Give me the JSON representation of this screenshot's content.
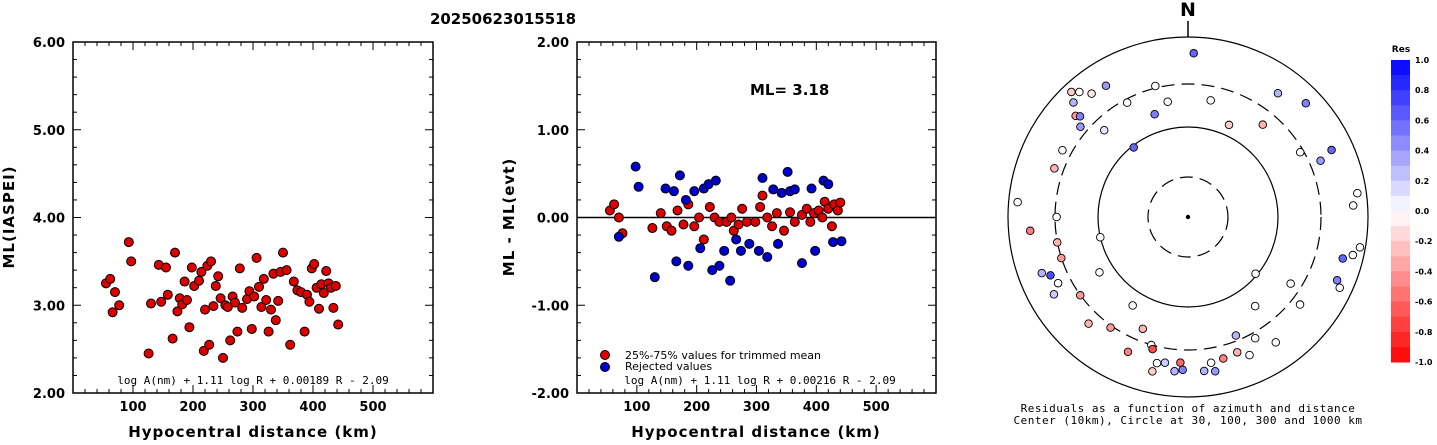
{
  "title": "20250623015518",
  "chart_data": [
    {
      "type": "scatter",
      "ylabel": "ML(IASPEI)",
      "xlabel": "Hypocentral distance (km)",
      "xticks": [
        "100",
        "200",
        "300",
        "400",
        "500"
      ],
      "yticks": [
        "2.00",
        "3.00",
        "4.00",
        "5.00",
        "6.00"
      ],
      "xlim": [
        0,
        600
      ],
      "ylim": [
        2.0,
        6.0
      ],
      "formula": "log A(nm) + 1.11 log R + 0.00189 R - 2.09",
      "points": [
        [
          55,
          3.25
        ],
        [
          62,
          3.3
        ],
        [
          66,
          2.92
        ],
        [
          70,
          3.15
        ],
        [
          77,
          3.0
        ],
        [
          93,
          3.72
        ],
        [
          97,
          3.5
        ],
        [
          126,
          2.45
        ],
        [
          130,
          3.02
        ],
        [
          143,
          3.46
        ],
        [
          147,
          3.04
        ],
        [
          155,
          3.43
        ],
        [
          158,
          3.12
        ],
        [
          166,
          2.62
        ],
        [
          170,
          3.6
        ],
        [
          174,
          2.93
        ],
        [
          178,
          3.08
        ],
        [
          182,
          3.01
        ],
        [
          186,
          3.27
        ],
        [
          190,
          3.06
        ],
        [
          194,
          2.75
        ],
        [
          198,
          3.43
        ],
        [
          202,
          3.22
        ],
        [
          210,
          3.28
        ],
        [
          214,
          3.38
        ],
        [
          218,
          2.48
        ],
        [
          220,
          2.95
        ],
        [
          224,
          3.45
        ],
        [
          227,
          2.55
        ],
        [
          230,
          3.5
        ],
        [
          234,
          2.99
        ],
        [
          238,
          3.22
        ],
        [
          242,
          3.33
        ],
        [
          246,
          3.08
        ],
        [
          250,
          2.4
        ],
        [
          254,
          3.0
        ],
        [
          258,
          2.98
        ],
        [
          262,
          2.6
        ],
        [
          266,
          3.1
        ],
        [
          270,
          3.03
        ],
        [
          274,
          2.7
        ],
        [
          278,
          3.42
        ],
        [
          282,
          2.97
        ],
        [
          290,
          3.07
        ],
        [
          294,
          3.16
        ],
        [
          298,
          2.73
        ],
        [
          302,
          3.1
        ],
        [
          306,
          3.54
        ],
        [
          310,
          3.21
        ],
        [
          314,
          2.98
        ],
        [
          318,
          3.3
        ],
        [
          322,
          3.06
        ],
        [
          326,
          2.7
        ],
        [
          330,
          2.95
        ],
        [
          334,
          3.36
        ],
        [
          338,
          2.83
        ],
        [
          342,
          3.05
        ],
        [
          346,
          3.38
        ],
        [
          350,
          3.6
        ],
        [
          356,
          3.4
        ],
        [
          362,
          2.55
        ],
        [
          368,
          3.27
        ],
        [
          374,
          3.17
        ],
        [
          380,
          3.15
        ],
        [
          386,
          2.7
        ],
        [
          390,
          3.12
        ],
        [
          394,
          3.04
        ],
        [
          398,
          3.42
        ],
        [
          402,
          3.47
        ],
        [
          406,
          3.2
        ],
        [
          410,
          2.96
        ],
        [
          414,
          3.24
        ],
        [
          418,
          3.14
        ],
        [
          422,
          3.39
        ],
        [
          426,
          3.25
        ],
        [
          430,
          3.2
        ],
        [
          434,
          2.97
        ],
        [
          438,
          3.22
        ],
        [
          442,
          2.78
        ]
      ]
    },
    {
      "type": "scatter",
      "ylabel": "ML - ML(evt)",
      "xlabel": "Hypocentral distance (km)",
      "xticks": [
        "100",
        "200",
        "300",
        "400",
        "500"
      ],
      "yticks": [
        "-2.00",
        "-1.00",
        "0.00",
        "1.00",
        "2.00"
      ],
      "xlim": [
        0,
        600
      ],
      "ylim": [
        -2.0,
        2.0
      ],
      "annotation": "ML= 3.18",
      "legend": [
        "25%-75% values for trimmed mean",
        "Rejected values"
      ],
      "formula": "log A(nm) + 1.11 log R + 0.00216 R - 2.09",
      "series": [
        {
          "color": "#dd0000",
          "points": [
            [
              55,
              0.08
            ],
            [
              62,
              0.15
            ],
            [
              70,
              0.0
            ],
            [
              76,
              -0.18
            ],
            [
              126,
              -0.12
            ],
            [
              140,
              0.05
            ],
            [
              150,
              -0.1
            ],
            [
              158,
              -0.15
            ],
            [
              168,
              0.08
            ],
            [
              178,
              -0.08
            ],
            [
              186,
              0.15
            ],
            [
              196,
              -0.1
            ],
            [
              204,
              0.0
            ],
            [
              212,
              -0.25
            ],
            [
              222,
              0.12
            ],
            [
              230,
              0.0
            ],
            [
              238,
              -0.05
            ],
            [
              250,
              -0.05
            ],
            [
              258,
              0.0
            ],
            [
              262,
              -0.15
            ],
            [
              270,
              -0.08
            ],
            [
              276,
              0.1
            ],
            [
              284,
              -0.05
            ],
            [
              298,
              -0.05
            ],
            [
              306,
              0.12
            ],
            [
              310,
              0.25
            ],
            [
              318,
              0.0
            ],
            [
              326,
              -0.1
            ],
            [
              334,
              0.05
            ],
            [
              346,
              -0.15
            ],
            [
              356,
              0.06
            ],
            [
              364,
              -0.05
            ],
            [
              376,
              0.03
            ],
            [
              384,
              0.1
            ],
            [
              390,
              -0.05
            ],
            [
              396,
              0.05
            ],
            [
              404,
              0.08
            ],
            [
              410,
              0.0
            ],
            [
              414,
              0.18
            ],
            [
              420,
              0.1
            ],
            [
              426,
              -0.1
            ],
            [
              430,
              0.15
            ],
            [
              436,
              0.08
            ],
            [
              440,
              0.17
            ]
          ]
        },
        {
          "color": "#0000cc",
          "points": [
            [
              70,
              -0.22
            ],
            [
              98,
              0.58
            ],
            [
              103,
              0.35
            ],
            [
              130,
              -0.68
            ],
            [
              148,
              0.33
            ],
            [
              162,
              0.3
            ],
            [
              166,
              -0.5
            ],
            [
              172,
              0.48
            ],
            [
              182,
              0.2
            ],
            [
              186,
              -0.55
            ],
            [
              196,
              0.3
            ],
            [
              206,
              -0.35
            ],
            [
              212,
              0.33
            ],
            [
              220,
              0.38
            ],
            [
              226,
              -0.6
            ],
            [
              232,
              0.42
            ],
            [
              238,
              -0.55
            ],
            [
              246,
              -0.38
            ],
            [
              256,
              -0.72
            ],
            [
              266,
              -0.25
            ],
            [
              274,
              -0.38
            ],
            [
              288,
              -0.3
            ],
            [
              304,
              -0.38
            ],
            [
              310,
              0.45
            ],
            [
              318,
              -0.45
            ],
            [
              328,
              0.32
            ],
            [
              336,
              -0.3
            ],
            [
              342,
              0.28
            ],
            [
              352,
              0.52
            ],
            [
              356,
              0.3
            ],
            [
              364,
              0.32
            ],
            [
              376,
              -0.52
            ],
            [
              392,
              0.33
            ],
            [
              398,
              -0.38
            ],
            [
              412,
              0.42
            ],
            [
              420,
              0.38
            ],
            [
              428,
              -0.28
            ],
            [
              442,
              -0.27
            ]
          ]
        }
      ]
    },
    {
      "type": "polar",
      "north_label": "N",
      "colorbar_title": "Res",
      "colorbar_ticks": [
        "1.0",
        "0.8",
        "0.6",
        "0.4",
        "0.2",
        "0.0",
        "-0.2",
        "-0.4",
        "-0.6",
        "-0.8",
        "-1.0"
      ],
      "caption_line1": "Residuals as a function of azimuth and distance",
      "caption_line2": "Center (10km), Circle at 30, 100, 300 and 1000 km",
      "stations": [
        [
          -45,
          0.9,
          0.3
        ],
        [
          -43,
          0.95,
          -0.2
        ],
        [
          -41,
          0.92,
          0.0
        ],
        [
          -48,
          0.84,
          -0.4
        ],
        [
          -50,
          0.78,
          0.4
        ],
        [
          -47,
          0.82,
          0.5
        ],
        [
          -38,
          0.87,
          -0.1
        ],
        [
          -28,
          0.72,
          0.0
        ],
        [
          -14,
          0.75,
          0.0
        ],
        [
          -10,
          0.65,
          0.0
        ],
        [
          -32,
          0.86,
          0.4
        ],
        [
          -44,
          0.67,
          0.1
        ],
        [
          -38,
          0.49,
          0.6
        ],
        [
          -18,
          0.6,
          0.5
        ],
        [
          2,
          0.91,
          0.6
        ],
        [
          -62,
          0.79,
          0.0
        ],
        [
          -70,
          0.79,
          -0.3
        ],
        [
          -95,
          0.88,
          -0.5
        ],
        [
          -85,
          0.95,
          0.0
        ],
        [
          -90,
          0.73,
          0.0
        ],
        [
          -101,
          0.74,
          -0.3
        ],
        [
          -108,
          0.74,
          -0.4
        ],
        [
          -113,
          0.83,
          0.7
        ],
        [
          -111,
          0.87,
          0.3
        ],
        [
          -120,
          0.86,
          0.2
        ],
        [
          -117,
          0.81,
          0.0
        ],
        [
          -126,
          0.74,
          -0.4
        ],
        [
          -137,
          0.81,
          -0.3
        ],
        [
          -103,
          0.5,
          0.0
        ],
        [
          -122,
          0.58,
          0.0
        ],
        [
          -145,
          0.75,
          -0.4
        ],
        [
          -156,
          0.82,
          -0.5
        ],
        [
          -164,
          0.74,
          0.0
        ],
        [
          -168,
          0.83,
          0.0
        ],
        [
          -177,
          0.81,
          -0.6
        ],
        [
          -178,
          0.85,
          0.5
        ],
        [
          -175,
          0.86,
          0.3
        ],
        [
          -165,
          0.76,
          -0.7
        ],
        [
          -158,
          0.67,
          -0.3
        ],
        [
          -148,
          0.58,
          0.0
        ],
        [
          -171,
          0.82,
          0.2
        ],
        [
          -167,
          0.88,
          -0.2
        ],
        [
          174,
          0.86,
          0.3
        ],
        [
          171,
          0.82,
          0.0
        ],
        [
          166,
          0.81,
          -0.5
        ],
        [
          170,
          0.87,
          0.4
        ],
        [
          160,
          0.8,
          -0.3
        ],
        [
          156,
          0.84,
          0.0
        ],
        [
          151,
          0.77,
          0.0
        ],
        [
          145,
          0.85,
          0.0
        ],
        [
          158,
          0.71,
          0.3
        ],
        [
          143,
          0.62,
          0.0
        ],
        [
          128,
          0.79,
          0.0
        ],
        [
          123,
          0.68,
          0.0
        ],
        [
          115,
          0.93,
          0.0
        ],
        [
          113,
          0.9,
          0.5
        ],
        [
          105,
          0.89,
          0.6
        ],
        [
          103,
          0.94,
          0.0
        ],
        [
          100,
          0.97,
          0.0
        ],
        [
          86,
          0.92,
          0.0
        ],
        [
          82,
          0.95,
          0.0
        ],
        [
          67,
          0.8,
          0.4
        ],
        [
          65,
          0.88,
          0.6
        ],
        [
          60,
          0.72,
          0.0
        ],
        [
          39,
          0.66,
          -0.3
        ],
        [
          46,
          0.91,
          0.5
        ],
        [
          36,
          0.85,
          0.3
        ],
        [
          11,
          0.66,
          0.0
        ],
        [
          24,
          0.56,
          -0.2
        ],
        [
          130,
          0.49,
          0.0
        ]
      ]
    }
  ]
}
